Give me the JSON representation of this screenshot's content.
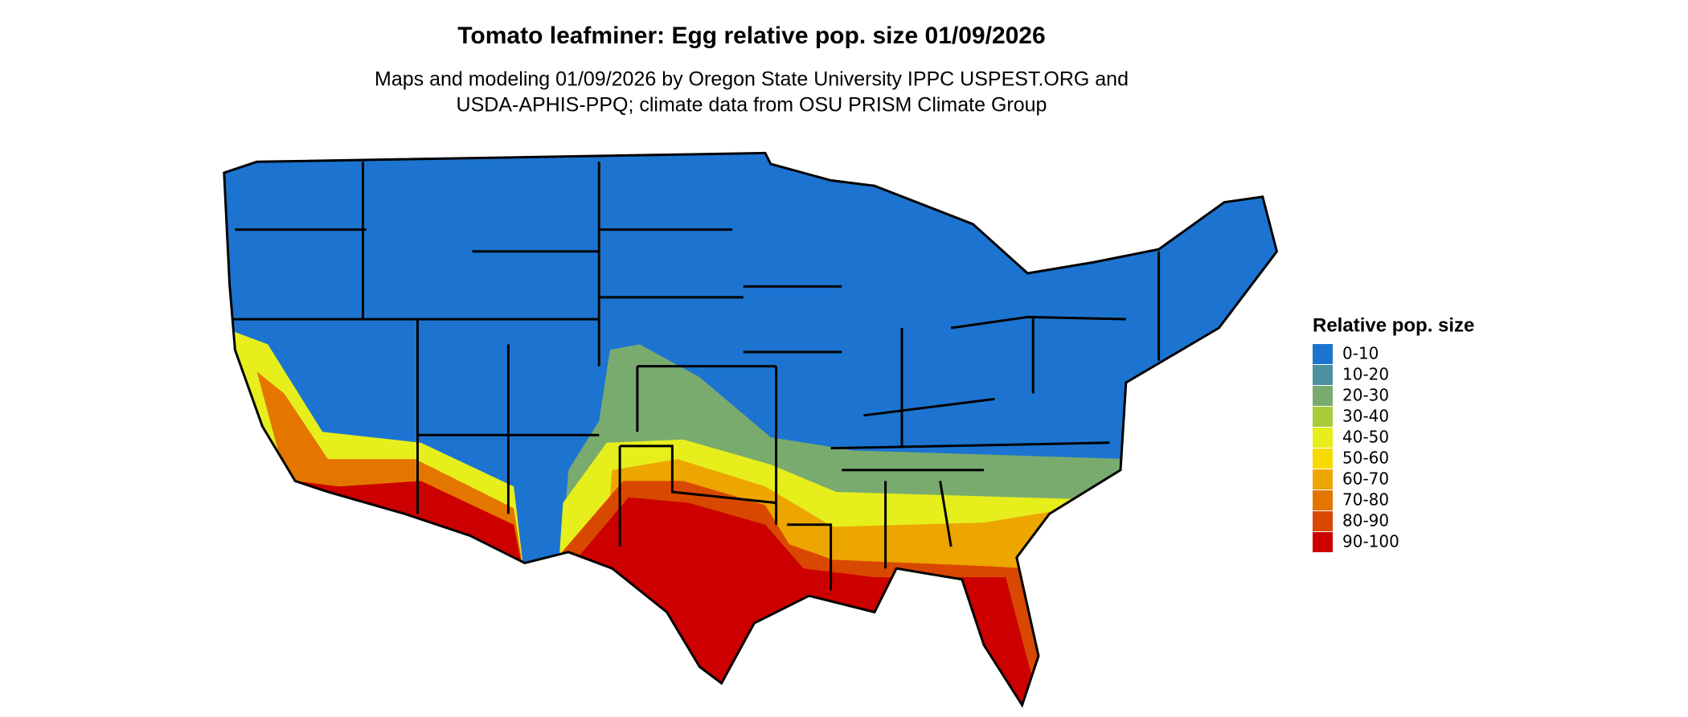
{
  "title": "Tomato leafminer: Egg relative pop. size 01/09/2026",
  "subtitle_lines": [
    "Maps and modeling 01/09/2026 by Oregon State University IPPC USPEST.ORG and",
    "USDA-APHIS-PPQ; climate data from OSU PRISM Climate Group"
  ],
  "legend": {
    "title": "Relative pop. size",
    "items": [
      {
        "label": "0-10",
        "color": "#1c74d0"
      },
      {
        "label": "10-20",
        "color": "#4b8fa0"
      },
      {
        "label": "20-30",
        "color": "#7aab6e"
      },
      {
        "label": "30-40",
        "color": "#a9cb3a"
      },
      {
        "label": "40-50",
        "color": "#e6ee1c"
      },
      {
        "label": "50-60",
        "color": "#f6da00"
      },
      {
        "label": "60-70",
        "color": "#eda500"
      },
      {
        "label": "70-80",
        "color": "#e47600"
      },
      {
        "label": "80-90",
        "color": "#d94800"
      },
      {
        "label": "90-100",
        "color": "#cc0000"
      }
    ]
  }
}
